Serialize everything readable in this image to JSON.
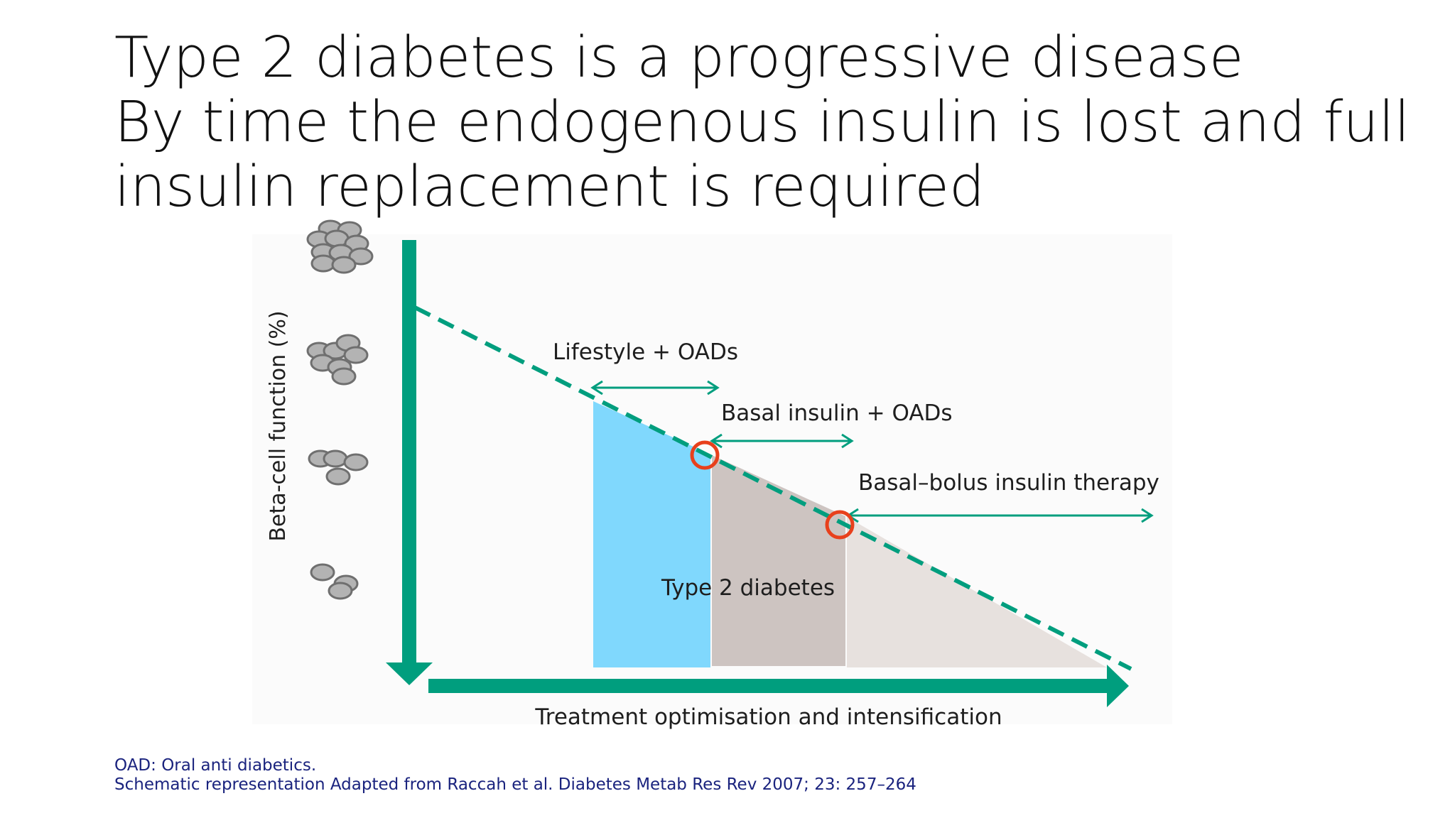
{
  "slide": {
    "title_lines": [
      "Type 2 diabetes is a progressive disease",
      "By time the endogenous insulin is lost and full",
      "insulin replacement is required"
    ]
  },
  "diagram": {
    "y_axis_label": "Beta-cell function (%)",
    "x_axis_label": "Treatment optimisation and intensification",
    "stages": [
      "Lifestyle + OADs",
      "Basal insulin + OADs",
      "Basal–bolus insulin therapy"
    ],
    "region_label": "Type 2 diabetes",
    "colors": {
      "axis_green": "#009e7e",
      "stage1": "#80d8fd",
      "stage2": "#cdc4c1",
      "stage3": "#e7e1de",
      "marker": "#e8401c",
      "cell": "#b3b3b3"
    }
  },
  "footnote": {
    "line1": "OAD: Oral anti diabetics.",
    "line2": "Schematic representation Adapted from Raccah et al. Diabetes Metab Res Rev 2007; 23: 257–264"
  }
}
